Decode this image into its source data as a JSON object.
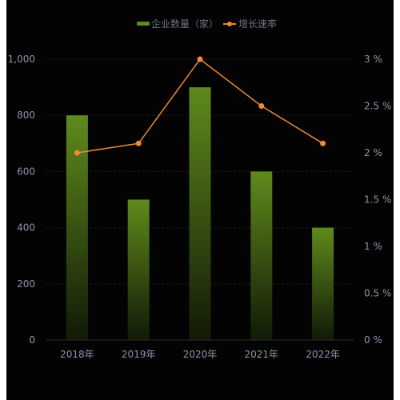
{
  "colors": {
    "background": "#030303",
    "bar_top": "#5f8a1d",
    "bar_bottom": "#111a06",
    "line": "#f28a2e",
    "axis_text": "#8c96a8",
    "legend_text": "#6b7280",
    "grid": "#1d1d1d"
  },
  "legend": {
    "bar_series_label": "企业数量（家）",
    "line_series_label": "增长速率"
  },
  "chart_data": {
    "type": "bar",
    "categories": [
      "2018年",
      "2019年",
      "2020年",
      "2021年",
      "2022年"
    ],
    "series": [
      {
        "name": "企业数量（家）",
        "type": "bar",
        "axis": "left",
        "values": [
          800,
          500,
          900,
          600,
          400
        ]
      },
      {
        "name": "增长速率",
        "type": "line",
        "axis": "right",
        "values": [
          2,
          2.1,
          3,
          2.5,
          2.1
        ]
      }
    ],
    "left_axis": {
      "ylim": [
        0,
        1000
      ],
      "ticks": [
        0,
        200,
        400,
        600,
        800,
        1000
      ],
      "tick_labels": [
        "0",
        "200",
        "400",
        "600",
        "800",
        "1,000"
      ]
    },
    "right_axis": {
      "ylim": [
        0,
        3
      ],
      "ticks": [
        0,
        0.5,
        1,
        1.5,
        2,
        2.5,
        3
      ],
      "tick_labels": [
        "0 %",
        "0.5 %",
        "1 %",
        "1.5 %",
        "2 %",
        "2.5 %",
        "3 %"
      ]
    },
    "grid": true,
    "legend_position": "top-center",
    "title": "",
    "xlabel": "",
    "ylabel": ""
  }
}
